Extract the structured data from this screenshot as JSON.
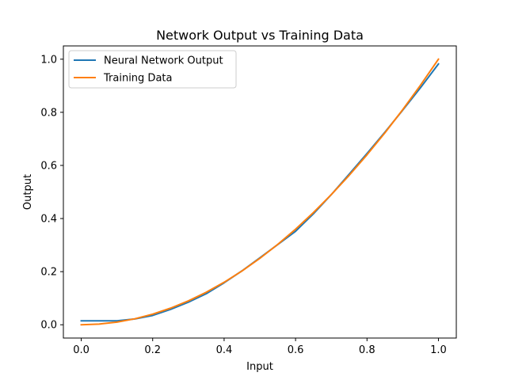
{
  "chart_data": {
    "type": "line",
    "title": "Network Output vs Training Data",
    "xlabel": "Input",
    "ylabel": "Output",
    "xlim": [
      -0.05,
      1.05
    ],
    "ylim": [
      -0.05,
      1.05
    ],
    "xticks": [
      0.0,
      0.2,
      0.4,
      0.6,
      0.8,
      1.0
    ],
    "yticks": [
      0.0,
      0.2,
      0.4,
      0.6,
      0.8,
      1.0
    ],
    "xtick_labels": [
      "0.0",
      "0.2",
      "0.4",
      "0.6",
      "0.8",
      "1.0"
    ],
    "ytick_labels": [
      "0.0",
      "0.2",
      "0.4",
      "0.6",
      "0.8",
      "1.0"
    ],
    "grid": false,
    "legend_position": "upper-left",
    "series": [
      {
        "name": "Neural Network Output",
        "color": "#1f77b4",
        "x": [
          0.0,
          0.1,
          0.15,
          0.2,
          0.25,
          0.3,
          0.35,
          0.4,
          0.45,
          0.5,
          0.55,
          0.6,
          0.65,
          0.7,
          0.75,
          0.8,
          0.85,
          0.9,
          0.95,
          1.0
        ],
        "y": [
          0.015,
          0.015,
          0.022,
          0.035,
          0.058,
          0.085,
          0.117,
          0.158,
          0.203,
          0.252,
          0.302,
          0.352,
          0.418,
          0.49,
          0.567,
          0.645,
          0.725,
          0.808,
          0.893,
          0.982
        ]
      },
      {
        "name": "Training Data",
        "color": "#ff7f0e",
        "x": [
          0.0,
          0.05,
          0.1,
          0.15,
          0.2,
          0.25,
          0.3,
          0.35,
          0.4,
          0.45,
          0.5,
          0.55,
          0.6,
          0.65,
          0.7,
          0.75,
          0.8,
          0.85,
          0.9,
          0.95,
          1.0
        ],
        "y": [
          0.0,
          0.0025,
          0.01,
          0.0225,
          0.04,
          0.0625,
          0.09,
          0.1225,
          0.16,
          0.2025,
          0.25,
          0.3025,
          0.36,
          0.4225,
          0.49,
          0.5625,
          0.64,
          0.7225,
          0.81,
          0.9025,
          1.0
        ]
      }
    ]
  }
}
